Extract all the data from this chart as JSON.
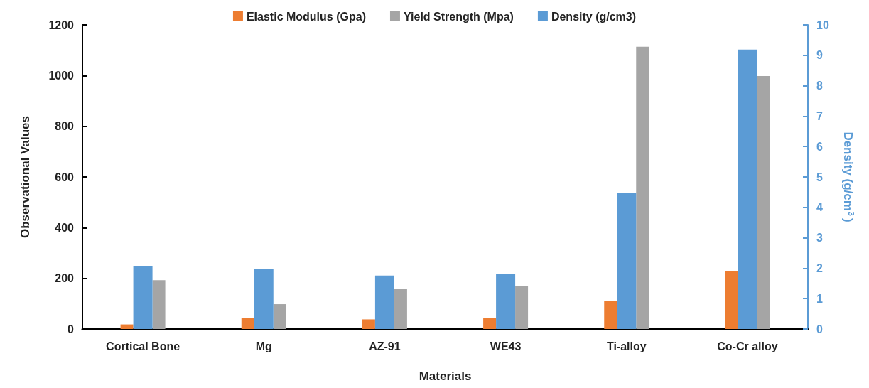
{
  "chart_data": {
    "type": "bar",
    "xlabel": "Materials",
    "ylabel": "Observational Values",
    "y2label": "Density (g/cm$^{3}$)",
    "categories": [
      "Cortical Bone",
      "Mg",
      "AZ-91",
      "WE43",
      "Ti-alloy",
      "Co-Cr alloy"
    ],
    "series": [
      {
        "name": "Elastic Modulus (Gpa)",
        "color": "#ed7d31",
        "values": [
          18,
          43,
          38,
          42,
          111,
          227
        ]
      },
      {
        "name": "Yield Strength (Mpa)",
        "color": "#a5a5a5",
        "values": [
          193,
          98,
          159,
          168,
          1114,
          998
        ]
      },
      {
        "name": "Density (g/cm3)",
        "color": "#5b9bd5",
        "axis": "y2",
        "values": [
          2.06,
          1.98,
          1.76,
          1.8,
          4.48,
          9.19
        ]
      }
    ],
    "ylim": [
      0,
      1200
    ],
    "yticks": [
      0,
      200,
      400,
      600,
      800,
      1000,
      1200
    ],
    "y2lim": [
      0,
      10
    ],
    "y2ticks": [
      0,
      1,
      2,
      3,
      4,
      5,
      6,
      7,
      8,
      9,
      10
    ],
    "grid": false,
    "legend": "top"
  }
}
